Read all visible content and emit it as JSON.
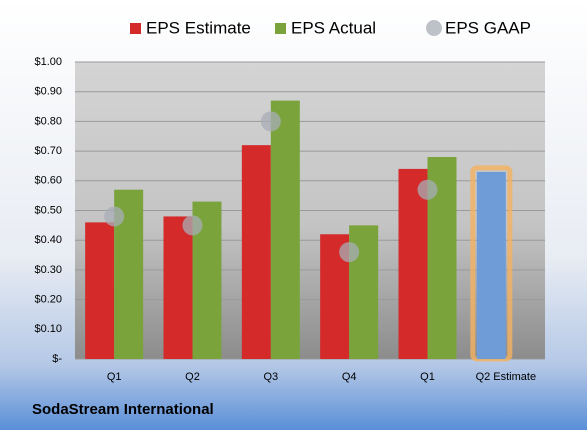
{
  "chart_data": {
    "type": "bar",
    "footer": "SodaStream International",
    "categories": [
      "Q1",
      "Q2",
      "Q3",
      "Q4",
      "Q1",
      "Q2 Estimate"
    ],
    "series": [
      {
        "name": "EPS Estimate",
        "color": "#d42a2a",
        "point_colors": [
          "#d42a2a",
          "#d42a2a",
          "#d42a2a",
          "#d42a2a",
          "#d42a2a",
          "#6f9bd6"
        ],
        "values": [
          0.46,
          0.48,
          0.72,
          0.42,
          0.64,
          0.63
        ]
      },
      {
        "name": "EPS Actual",
        "color": "#7aa33c",
        "values": [
          0.57,
          0.53,
          0.87,
          0.45,
          0.68,
          null
        ]
      },
      {
        "name": "EPS GAAP",
        "color": "#a8adb5",
        "marker": "circle",
        "values": [
          0.48,
          0.45,
          0.8,
          0.36,
          0.57,
          null
        ]
      }
    ],
    "ylim": [
      0,
      1
    ],
    "yticks": [
      {
        "value": 0,
        "label": "$-"
      },
      {
        "value": 0.1,
        "label": "$0.10"
      },
      {
        "value": 0.2,
        "label": "$0.20"
      },
      {
        "value": 0.3,
        "label": "$0.30"
      },
      {
        "value": 0.4,
        "label": "$0.40"
      },
      {
        "value": 0.5,
        "label": "$0.50"
      },
      {
        "value": 0.6,
        "label": "$0.60"
      },
      {
        "value": 0.7,
        "label": "$0.70"
      },
      {
        "value": 0.8,
        "label": "$0.80"
      },
      {
        "value": 0.9,
        "label": "$0.90"
      },
      {
        "value": 1,
        "label": "$1.00"
      }
    ],
    "grid": true
  }
}
